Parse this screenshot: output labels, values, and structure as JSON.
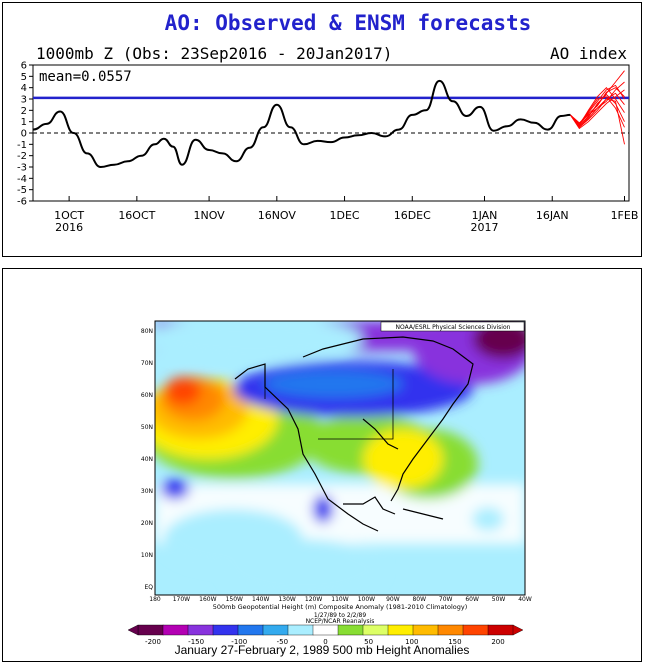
{
  "ao_panel": {
    "title": "AO: Observed & ENSM forecasts",
    "subtitle_left": "1000mb Z (Obs: 23Sep2016 - 20Jan2017)",
    "subtitle_right": "AO index",
    "mean_label": "mean=0.0557",
    "x_ticks": [
      {
        "label": "1OCT",
        "sub": "2016"
      },
      {
        "label": "16OCT",
        "sub": ""
      },
      {
        "label": "1NOV",
        "sub": ""
      },
      {
        "label": "16NOV",
        "sub": ""
      },
      {
        "label": "1DEC",
        "sub": ""
      },
      {
        "label": "16DEC",
        "sub": ""
      },
      {
        "label": "1JAN",
        "sub": "2017"
      },
      {
        "label": "16JAN",
        "sub": ""
      },
      {
        "label": "1FEB",
        "sub": ""
      }
    ],
    "colors": {
      "observed": "#000000",
      "forecast": "#ff0000",
      "hline": "#2222cc",
      "title": "#2222cc"
    }
  },
  "chart_data": [
    {
      "type": "line",
      "title": "AO: Observed & ENSM forecasts",
      "xlabel": "",
      "ylabel": "",
      "ylim": [
        -6,
        6
      ],
      "yticks": [
        -6,
        -5,
        -4,
        -3,
        -2,
        -1,
        0,
        1,
        2,
        3,
        4,
        5,
        6
      ],
      "xlim": [
        "2016-09-23",
        "2017-02-02"
      ],
      "hline": 3.1,
      "zero_line_dashed": true,
      "series": [
        {
          "type": "observed",
          "x": [
            "2016-09-23",
            "2016-09-26",
            "2016-09-29",
            "2016-10-02",
            "2016-10-05",
            "2016-10-08",
            "2016-10-11",
            "2016-10-14",
            "2016-10-17",
            "2016-10-20",
            "2016-10-22",
            "2016-10-24",
            "2016-10-26",
            "2016-10-29",
            "2016-11-01",
            "2016-11-04",
            "2016-11-07",
            "2016-11-10",
            "2016-11-13",
            "2016-11-16",
            "2016-11-19",
            "2016-11-22",
            "2016-11-25",
            "2016-11-28",
            "2016-12-01",
            "2016-12-04",
            "2016-12-07",
            "2016-12-10",
            "2016-12-13",
            "2016-12-16",
            "2016-12-19",
            "2016-12-22",
            "2016-12-25",
            "2016-12-28",
            "2016-12-31",
            "2017-01-03",
            "2017-01-06",
            "2017-01-09",
            "2017-01-12",
            "2017-01-15",
            "2017-01-18",
            "2017-01-20"
          ],
          "values": [
            0.3,
            0.8,
            1.9,
            0.0,
            -1.8,
            -3.0,
            -2.8,
            -2.5,
            -2.0,
            -1.0,
            -0.5,
            -1.2,
            -2.8,
            -0.6,
            -1.5,
            -1.8,
            -2.5,
            -1.3,
            0.5,
            2.5,
            0.5,
            -1.0,
            -0.7,
            -0.8,
            -0.4,
            -0.2,
            0.0,
            -0.3,
            0.3,
            1.6,
            2.0,
            4.6,
            2.8,
            1.5,
            2.3,
            0.2,
            0.6,
            1.2,
            0.9,
            0.3,
            1.5,
            1.6
          ]
        },
        {
          "type": "ensemble_forecast",
          "x": [
            "2017-01-20",
            "2017-01-22",
            "2017-01-24",
            "2017-01-26",
            "2017-01-28",
            "2017-01-30",
            "2017-02-01"
          ],
          "members": [
            [
              1.6,
              0.6,
              1.5,
              2.5,
              3.5,
              4.5,
              5.5
            ],
            [
              1.6,
              0.8,
              1.8,
              2.8,
              3.8,
              4.2,
              3.0
            ],
            [
              1.6,
              0.5,
              1.2,
              2.0,
              3.0,
              3.5,
              2.5
            ],
            [
              1.6,
              0.7,
              2.0,
              3.2,
              4.0,
              3.0,
              1.8
            ],
            [
              1.6,
              0.9,
              1.6,
              2.2,
              2.8,
              3.8,
              4.5
            ],
            [
              1.6,
              0.6,
              1.4,
              2.6,
              3.4,
              2.6,
              1.0
            ],
            [
              1.6,
              0.4,
              1.0,
              1.8,
              2.6,
              3.2,
              3.8
            ],
            [
              1.6,
              0.8,
              1.9,
              3.0,
              3.2,
              2.2,
              0.5
            ],
            [
              1.6,
              0.7,
              1.7,
              2.4,
              3.6,
              4.0,
              3.2
            ],
            [
              1.6,
              0.5,
              1.3,
              2.2,
              3.0,
              2.8,
              -1.0
            ]
          ]
        }
      ]
    },
    {
      "type": "heatmap",
      "title": "500mb Geopotential Height (m) Composite Anomaly (1981-2010 Climatology)",
      "colorbar_ticks": [
        -200,
        -150,
        -100,
        -50,
        0,
        50,
        100,
        150,
        200
      ]
    }
  ],
  "map_panel": {
    "header_box": "NOAA/ESRL Physical Sciences Division",
    "lat_labels": [
      "80N",
      "70N",
      "60N",
      "50N",
      "40N",
      "30N",
      "20N",
      "10N",
      "EQ"
    ],
    "lon_labels": [
      "180",
      "170W",
      "160W",
      "150W",
      "140W",
      "130W",
      "120W",
      "110W",
      "100W",
      "90W",
      "80W",
      "70W",
      "60W",
      "50W",
      "40W"
    ],
    "map_title": "500mb Geopotential Height (m) Composite Anomaly (1981-2010 Climatology)",
    "map_dates": "1/27/89 to 2/2/89",
    "map_source": "NCEP/NCAR Reanalysis",
    "colorbar_ticks": [
      "-200",
      "-150",
      "-100",
      "-50",
      "0",
      "50",
      "100",
      "150",
      "200"
    ],
    "colorbar_colors": [
      "#66004d",
      "#b300b3",
      "#8833dd",
      "#3333ee",
      "#2277ee",
      "#33aaee",
      "#aaeeff",
      "#ffffff",
      "#88dd33",
      "#ddff66",
      "#ffee00",
      "#ffbb00",
      "#ff8800",
      "#ff4400",
      "#cc0000"
    ],
    "caption": "January 27-February 2, 1989 500 mb Height Anomalies"
  }
}
